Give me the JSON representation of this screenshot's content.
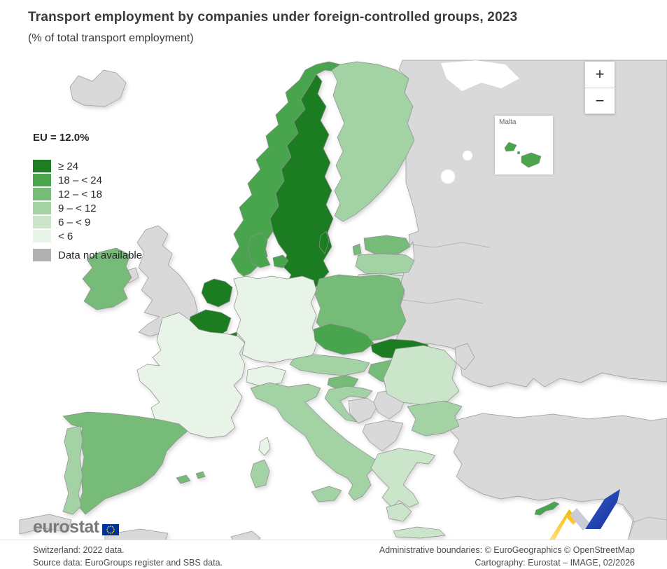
{
  "title": "Transport employment by companies under foreign-controlled groups, 2023",
  "subtitle": "(% of total transport employment)",
  "legend": {
    "eu_value": "EU = 12.0%",
    "classes": [
      {
        "key": "gte24",
        "label": "≥ 24",
        "color": "#1f7b24"
      },
      {
        "key": "c18",
        "label": "18 – < 24",
        "color": "#4aa54d"
      },
      {
        "key": "c12",
        "label": "12 – < 18",
        "color": "#77bb79"
      },
      {
        "key": "c9",
        "label": "9 – < 12",
        "color": "#a3d2a4"
      },
      {
        "key": "c6",
        "label": "6 – < 9",
        "color": "#cbe5cb"
      },
      {
        "key": "lt6",
        "label": "< 6",
        "color": "#e9f4e8"
      }
    ],
    "no_data": {
      "label": "Data not available",
      "color": "#b1b1b1"
    }
  },
  "map": {
    "sea_color": "#ffffff",
    "non_eu_color": "#d9d9d9",
    "border_color": "#8f8f8f",
    "countries": {
      "Sweden": "gte24",
      "Netherlands": "gte24",
      "Belgium": "gte24",
      "Luxembourg": "gte24",
      "Slovakia": "gte24",
      "Norway": "c18",
      "Denmark": "c18",
      "Czechia": "c18",
      "Cyprus": "c18",
      "Malta": "c18",
      "Ireland": "c12",
      "Poland": "c12",
      "Estonia": "c12",
      "Spain": "c12",
      "Hungary": "c12",
      "Slovenia": "c12",
      "Balearics": "c12",
      "Finland": "c9",
      "Latvia": "c9",
      "Austria": "c9",
      "Portugal": "c9",
      "Italy": "c9",
      "Croatia": "c9",
      "Bulgaria": "c9",
      "Sicily": "c9",
      "Sardinia": "c9",
      "Lithuania": "c6",
      "Romania": "c6",
      "Greece": "c6",
      "Germany": "lt6",
      "France": "lt6",
      "Switzerland": "lt6",
      "Corsica": "lt6"
    },
    "grey_regions": [
      "Iceland",
      "United Kingdom",
      "Northern Ireland",
      "Kaliningrad",
      "Russia-Belarus-Ukraine",
      "Moldova",
      "Bosnia",
      "Serbia",
      "Albania-Macedonia",
      "Turkey",
      "North Africa"
    ],
    "inset": {
      "label": "Malta"
    },
    "watermark_colors": {
      "yellow": "#fbc51d",
      "silver": "#c9ccd6",
      "blue": "#2b4cc0"
    }
  },
  "zoom_controls": {
    "zoom_in": "+",
    "zoom_out": "−"
  },
  "logo": {
    "text": "eurostat",
    "flag_blue": "#003399",
    "flag_stars": "#ffcc00"
  },
  "footnotes": {
    "left": [
      "Switzerland: 2022 data.",
      "Source data: EuroGroups register and SBS data."
    ],
    "right": [
      "Administrative boundaries: © EuroGeographics © OpenStreetMap",
      "Cartography: Eurostat – IMAGE, 02/2026"
    ]
  }
}
